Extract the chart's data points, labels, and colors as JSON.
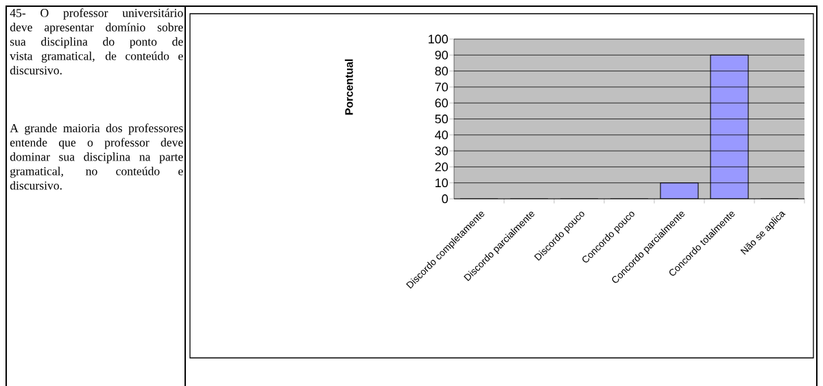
{
  "chart_data": {
    "type": "bar",
    "ylabel": "Porcentual",
    "categories": [
      "Discordo completamente",
      "Discordo parcialmente",
      "Discordo pouco",
      "Concordo pouco",
      "Concordo parcialmente",
      "Concordo totalmente",
      "Não se aplica"
    ],
    "values": [
      0,
      0,
      0,
      0,
      10,
      90,
      0
    ],
    "color": "#9999ff",
    "ylim": [
      0,
      100
    ],
    "yticks": [
      0,
      10,
      20,
      30,
      40,
      50,
      60,
      70,
      80,
      90,
      100
    ],
    "grid": "y",
    "annotations": [
      "45- O professor universitário deve apresentar domínio sobre sua disciplina do ponto de vista gramatical, de conteúdo e discursivo.",
      "A grande maioria dos professores entende que o professor deve dominar sua disciplina na parte gramatical, no conteúdo e discursivo."
    ]
  }
}
